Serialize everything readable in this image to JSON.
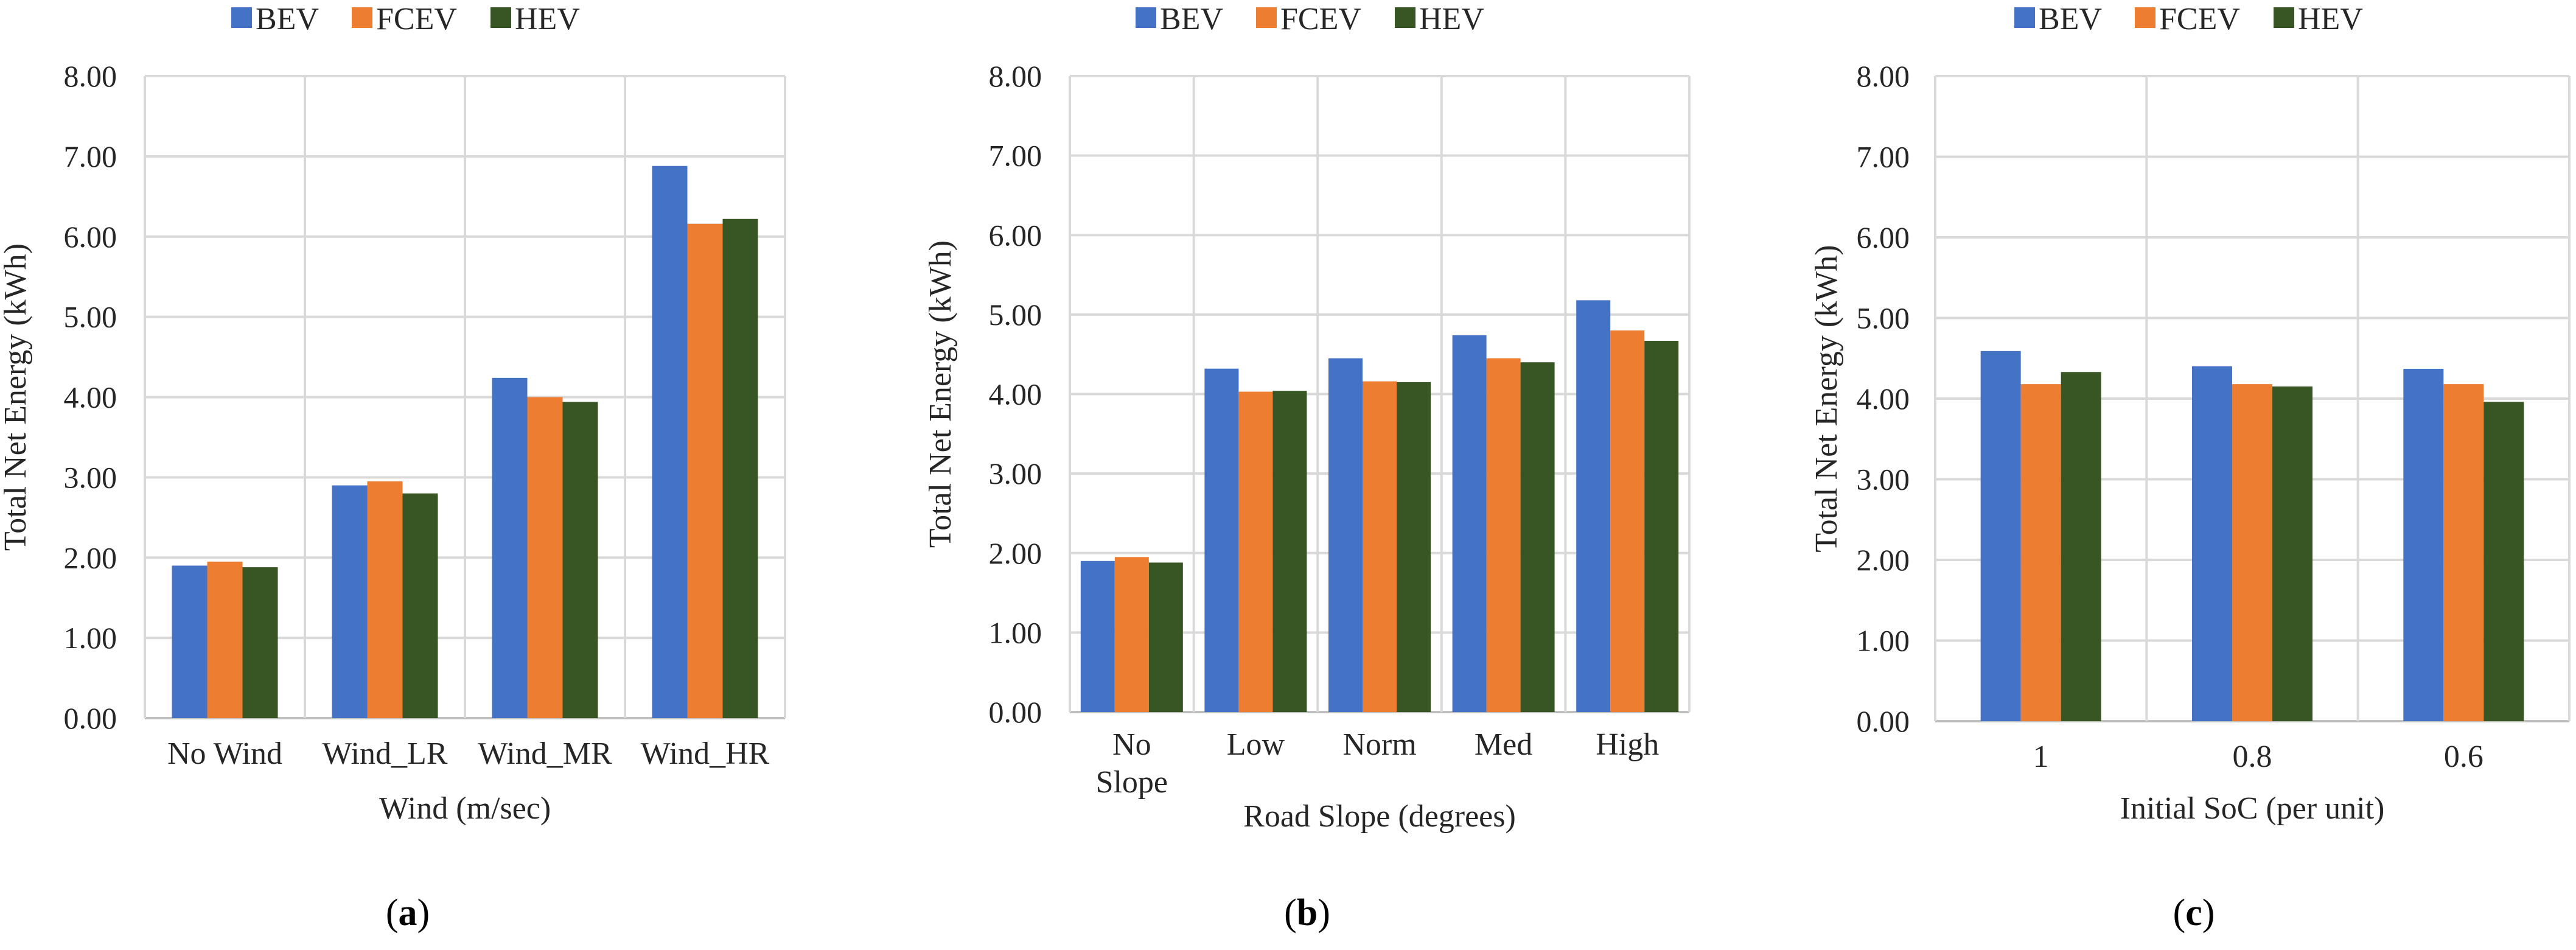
{
  "chart_data": [
    {
      "type": "bar",
      "panel": "(a)",
      "panel_letter": "a",
      "xlabel": "Wind (m/sec)",
      "ylabel": "Total Net Energy (kWh)",
      "ylim": [
        0,
        8
      ],
      "yticks": [
        "0.00",
        "1.00",
        "2.00",
        "3.00",
        "4.00",
        "5.00",
        "6.00",
        "7.00",
        "8.00"
      ],
      "categories": [
        [
          "No Wind"
        ],
        [
          "Wind_LR"
        ],
        [
          "Wind_MR"
        ],
        [
          "Wind_HR"
        ]
      ],
      "series": [
        {
          "name": "BEV",
          "values": [
            1.9,
            2.9,
            4.24,
            6.88
          ]
        },
        {
          "name": "FCEV",
          "values": [
            1.95,
            2.95,
            4.0,
            6.16
          ]
        },
        {
          "name": "HEV",
          "values": [
            1.88,
            2.8,
            3.94,
            6.22
          ]
        }
      ],
      "legend_position": "top",
      "grid": true
    },
    {
      "type": "bar",
      "panel": "(b)",
      "panel_letter": "b",
      "xlabel": "Road Slope (degrees)",
      "ylabel": "Total Net Energy (kWh)",
      "ylim": [
        0,
        8
      ],
      "yticks": [
        "0.00",
        "1.00",
        "2.00",
        "3.00",
        "4.00",
        "5.00",
        "6.00",
        "7.00",
        "8.00"
      ],
      "categories": [
        [
          "No",
          "Slope"
        ],
        [
          "Low"
        ],
        [
          "Norm"
        ],
        [
          "Med"
        ],
        [
          "High"
        ]
      ],
      "series": [
        {
          "name": "BEV",
          "values": [
            1.9,
            4.32,
            4.45,
            4.74,
            5.18
          ]
        },
        {
          "name": "FCEV",
          "values": [
            1.95,
            4.03,
            4.16,
            4.45,
            4.8
          ]
        },
        {
          "name": "HEV",
          "values": [
            1.88,
            4.04,
            4.15,
            4.4,
            4.67
          ]
        }
      ],
      "legend_position": "top",
      "grid": true
    },
    {
      "type": "bar",
      "panel": "(c)",
      "panel_letter": "c",
      "xlabel": "Initial SoC (per unit)",
      "ylabel": "Total Net Energy (kWh)",
      "ylim": [
        0,
        8
      ],
      "yticks": [
        "0.00",
        "1.00",
        "2.00",
        "3.00",
        "4.00",
        "5.00",
        "6.00",
        "7.00",
        "8.00"
      ],
      "categories": [
        [
          "1"
        ],
        [
          "0.8"
        ],
        [
          "0.6"
        ]
      ],
      "series": [
        {
          "name": "BEV",
          "values": [
            4.59,
            4.4,
            4.37
          ]
        },
        {
          "name": "FCEV",
          "values": [
            4.18,
            4.18,
            4.18
          ]
        },
        {
          "name": "HEV",
          "values": [
            4.33,
            4.15,
            3.96
          ]
        }
      ],
      "legend_position": "top",
      "grid": true
    }
  ],
  "colors": {
    "BEV": "#4472C4",
    "FCEV": "#ED7D31",
    "HEV": "#375623",
    "grid": "#D9D9D9",
    "axis": "#BFBFBF"
  }
}
